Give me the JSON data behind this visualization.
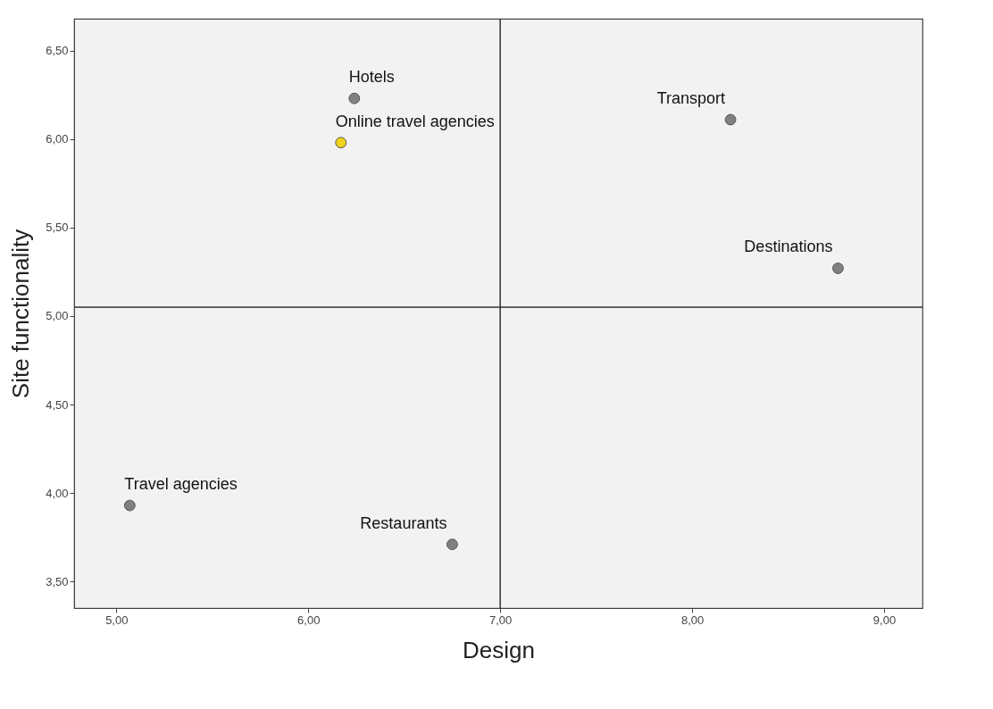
{
  "chart_data": {
    "type": "scatter",
    "xlabel": "Design",
    "ylabel": "Site functionality",
    "x": [
      6.24,
      6.17,
      8.2,
      8.76,
      5.07,
      6.75
    ],
    "values": [
      6.23,
      5.98,
      6.11,
      5.27,
      3.93,
      3.71
    ],
    "colors": [
      "#808080",
      "#f2d31b",
      "#808080",
      "#808080",
      "#808080",
      "#808080"
    ],
    "marker": "circle",
    "grid": false,
    "xlim": [
      4.78,
      9.2
    ],
    "ylim": [
      3.35,
      6.68
    ],
    "xticks": [
      {
        "value": 5,
        "label": "5,00"
      },
      {
        "value": 6,
        "label": "6,00"
      },
      {
        "value": 7,
        "label": "7,00"
      },
      {
        "value": 8,
        "label": "8,00"
      },
      {
        "value": 9,
        "label": "9,00"
      }
    ],
    "yticks": [
      {
        "value": 3.5,
        "label": "3,50"
      },
      {
        "value": 4,
        "label": "4,00"
      },
      {
        "value": 4.5,
        "label": "4,50"
      },
      {
        "value": 5,
        "label": "5,00"
      },
      {
        "value": 5.5,
        "label": "5,50"
      },
      {
        "value": 6,
        "label": "6,00"
      },
      {
        "value": 6.5,
        "label": "6,50"
      }
    ],
    "ref_lines": [
      {
        "axis": "x",
        "value": 7.0
      },
      {
        "axis": "y",
        "value": 5.05
      }
    ],
    "annotations": [
      {
        "text": "Hotels",
        "x": 6.24,
        "y": 6.23
      },
      {
        "text": "Online travel agencies",
        "x": 6.17,
        "y": 5.98
      },
      {
        "text": "Transport",
        "x": 8.2,
        "y": 6.11
      },
      {
        "text": "Destinations",
        "x": 8.76,
        "y": 5.27
      },
      {
        "text": "Travel agencies",
        "x": 5.07,
        "y": 3.93
      },
      {
        "text": "Restaurants",
        "x": 6.75,
        "y": 3.71
      }
    ]
  }
}
